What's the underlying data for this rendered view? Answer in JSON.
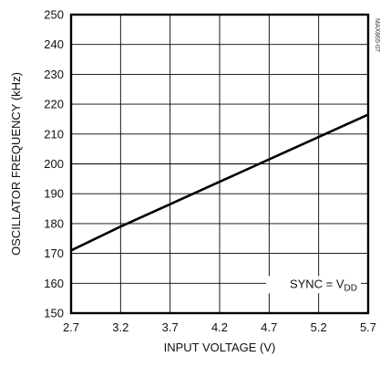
{
  "chart_data": {
    "type": "line",
    "xlabel": "INPUT VOLTAGE (V)",
    "ylabel": "OSCILLATOR FREQUENCY (kHz)",
    "xlim": [
      2.7,
      5.7
    ],
    "ylim": [
      150,
      250
    ],
    "x_ticks": [
      "2.7",
      "3.2",
      "3.7",
      "4.2",
      "4.7",
      "5.2",
      "5.7"
    ],
    "y_ticks": [
      "250",
      "240",
      "230",
      "220",
      "210",
      "200",
      "190",
      "180",
      "170",
      "160",
      "150"
    ],
    "grid": true,
    "series": [
      {
        "x": [
          2.7,
          3.2,
          3.7,
          4.2,
          4.7,
          5.2,
          5.7
        ],
        "y": [
          171,
          179,
          186.5,
          194,
          201.5,
          209,
          216.5
        ]
      }
    ],
    "annotation": {
      "prefix": "SYNC = V",
      "subscript": "DD"
    },
    "figure_code": "MAX865-07"
  }
}
